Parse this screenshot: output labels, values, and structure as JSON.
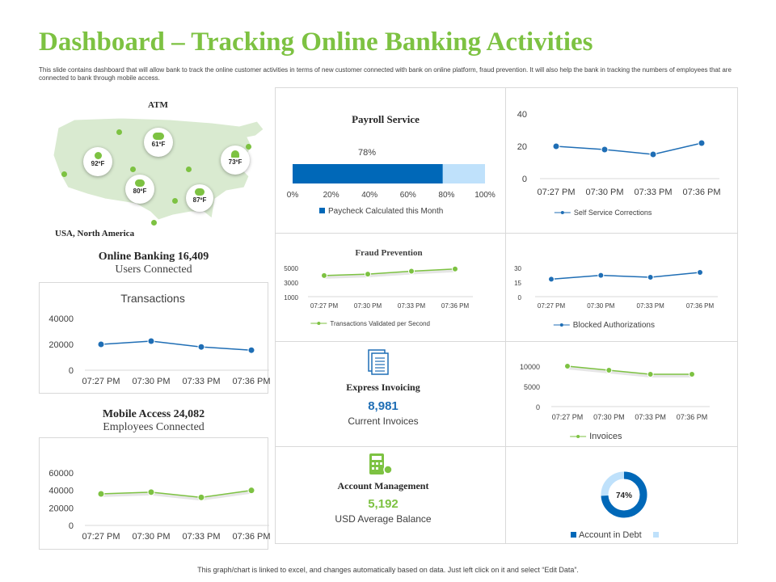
{
  "header": {
    "title": "Dashboard – Tracking Online Banking Activities",
    "description": "This slide contains dashboard that will allow bank to track the online customer activities in terms of new customer connected with bank on online platform, fraud prevention. It will also help the bank in tracking the numbers of employees that are connected to bank through mobile access."
  },
  "footer": "This graph/chart is linked to excel, and changes automatically based on data. Just left click on it and select “Edit Data”.",
  "colors": {
    "green": "#7dc242",
    "blue": "#1f6eb5",
    "dark_blue": "#0068b8",
    "light_blue": "#bfe1fb"
  },
  "map": {
    "title": "ATM",
    "caption": "USA, North America",
    "temperatures": [
      "61ºF",
      "92ºF",
      "73ºF",
      "80ºF",
      "87ºF"
    ]
  },
  "online_banking": {
    "label": "Online Banking 16,409",
    "sub": "Users Connected"
  },
  "mobile_access": {
    "label": "Mobile Access 24,082",
    "sub": "Employees Connected"
  },
  "express_invoicing": {
    "title": "Express Invoicing",
    "value": "8,981",
    "sub": "Current Invoices",
    "icon": "document-icon"
  },
  "account_management": {
    "title": "Account Management",
    "value": "5,192",
    "sub": "USD Average Balance",
    "icon": "calculator-gear-icon"
  },
  "chart_data": [
    {
      "id": "transactions",
      "type": "line",
      "title": "Transactions",
      "x": [
        "07:27 PM",
        "07:30 PM",
        "07:33 PM",
        "07:36 PM"
      ],
      "series": [
        {
          "values": [
            20000,
            22500,
            18000,
            15500
          ]
        }
      ],
      "yticks": [
        "40000",
        "20000",
        "0"
      ],
      "ylim": [
        0,
        40000
      ]
    },
    {
      "id": "mobile",
      "type": "line",
      "title": "",
      "x": [
        "07:27 PM",
        "07:30 PM",
        "07:33 PM",
        "07:36 PM"
      ],
      "series": [
        {
          "values": [
            36000,
            38000,
            32000,
            40000
          ]
        }
      ],
      "yticks": [
        "60000",
        "40000",
        "20000",
        "0"
      ],
      "ylim": [
        0,
        60000
      ]
    },
    {
      "id": "payroll",
      "type": "bar",
      "title": "Payroll Service",
      "series": [
        {
          "name": "Paycheck Calculated this Month",
          "values": [
            78
          ]
        }
      ],
      "data_label": "78%",
      "xticks": [
        "0%",
        "20%",
        "40%",
        "60%",
        "80%",
        "100%"
      ],
      "xlim": [
        0,
        100
      ]
    },
    {
      "id": "self_service",
      "type": "line",
      "title": "",
      "x": [
        "07:27 PM",
        "07:30 PM",
        "07:33 PM",
        "07:36 PM"
      ],
      "series": [
        {
          "name": "Self Service Corrections",
          "values": [
            20,
            18,
            15,
            22
          ]
        }
      ],
      "yticks": [
        "40",
        "20",
        "0"
      ],
      "ylim": [
        0,
        40
      ]
    },
    {
      "id": "fraud",
      "type": "line",
      "title": "Fraud Prevention",
      "x": [
        "07:27 PM",
        "07:30 PM",
        "07:33 PM",
        "07:36 PM"
      ],
      "series": [
        {
          "name": "Transactions Validated per Second",
          "values": [
            3900,
            4100,
            4500,
            4800
          ]
        }
      ],
      "yticks": [
        "5000",
        "3000",
        "1000"
      ],
      "ylim": [
        1000,
        5000
      ]
    },
    {
      "id": "blocked",
      "type": "line",
      "title": "",
      "x": [
        "07:27 PM",
        "07:30 PM",
        "07:33 PM",
        "07:36 PM"
      ],
      "series": [
        {
          "name": "Blocked Authorizations",
          "values": [
            18,
            22,
            20,
            25
          ]
        }
      ],
      "yticks": [
        "30",
        "15",
        "0"
      ],
      "ylim": [
        0,
        30
      ]
    },
    {
      "id": "invoices",
      "type": "line",
      "title": "",
      "x": [
        "07:27 PM",
        "07:30 PM",
        "07:33 PM",
        "07:36 PM"
      ],
      "series": [
        {
          "name": "Invoices",
          "values": [
            10000,
            9000,
            8000,
            8000
          ]
        }
      ],
      "yticks": [
        "10000",
        "5000",
        "0"
      ],
      "ylim": [
        0,
        10000
      ]
    },
    {
      "id": "account_debt",
      "type": "pie",
      "title": "",
      "series": [
        {
          "name": "Account in Debt",
          "values": [
            74,
            26
          ]
        }
      ],
      "data_label": "74%"
    }
  ]
}
